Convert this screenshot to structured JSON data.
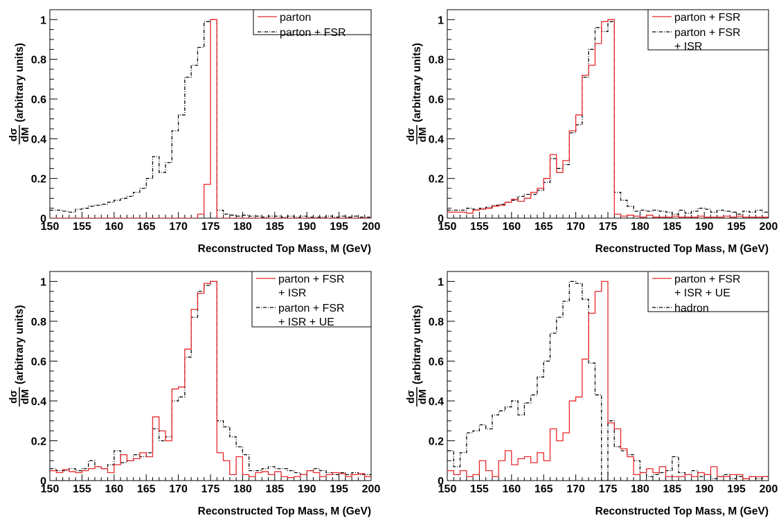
{
  "figure": {
    "x_axis_label": "Reconstructed Top Mass, M (GeV)",
    "y_axis_label": {
      "numerator": "dσ",
      "denominator": "dM",
      "units": "(arbitrary units)"
    }
  },
  "colors": {
    "red": "#e8262a",
    "black": "#000000"
  },
  "chart_data": [
    {
      "type": "line",
      "title": "",
      "xlabel": "Reconstructed Top Mass, M (GeV)",
      "ylabel": "dσ/dM (arbitrary units)",
      "xlim": [
        150,
        200
      ],
      "ylim": [
        0,
        1.05
      ],
      "x_ticks": [
        "150",
        "155",
        "160",
        "165",
        "170",
        "175",
        "180",
        "185",
        "190",
        "195",
        "200"
      ],
      "y_ticks": [
        "0",
        "0.2",
        "0.4",
        "0.6",
        "0.8",
        "1"
      ],
      "bin_edges_start": 150,
      "bin_width": 1,
      "legend_location": "top-right",
      "series": [
        {
          "name": "parton",
          "color": "red",
          "style": "solid",
          "values": [
            0,
            0,
            0,
            0,
            0,
            0,
            0,
            0,
            0,
            0,
            0,
            0,
            0,
            0,
            0,
            0,
            0,
            0,
            0,
            0,
            0,
            0,
            0,
            0.02,
            0.17,
            1.0,
            0,
            0,
            0,
            0,
            0,
            0,
            0,
            0,
            0,
            0,
            0,
            0,
            0,
            0,
            0,
            0,
            0,
            0,
            0,
            0,
            0,
            0,
            0,
            0
          ]
        },
        {
          "name": "parton + FSR",
          "color": "black",
          "style": "dashdot",
          "values": [
            0.04,
            0.04,
            0.035,
            0.03,
            0.045,
            0.05,
            0.06,
            0.065,
            0.07,
            0.08,
            0.09,
            0.1,
            0.11,
            0.13,
            0.15,
            0.2,
            0.31,
            0.23,
            0.28,
            0.44,
            0.52,
            0.71,
            0.77,
            0.86,
            0.99,
            1.0,
            0.04,
            0.02,
            0.015,
            0.01,
            0.015,
            0.01,
            0.01,
            0.005,
            0.01,
            0.01,
            0.005,
            0.01,
            0.005,
            0.01,
            0.005,
            0.005,
            0.005,
            0.01,
            0.005,
            0.01,
            0.005,
            0.01,
            0.005,
            0.005
          ]
        }
      ]
    },
    {
      "type": "line",
      "title": "",
      "xlabel": "Reconstructed Top Mass, M (GeV)",
      "ylabel": "dσ/dM (arbitrary units)",
      "xlim": [
        150,
        200
      ],
      "ylim": [
        0,
        1.05
      ],
      "x_ticks": [
        "150",
        "155",
        "160",
        "165",
        "170",
        "175",
        "180",
        "185",
        "190",
        "195",
        "200"
      ],
      "y_ticks": [
        "0",
        "0.2",
        "0.4",
        "0.6",
        "0.8",
        "1"
      ],
      "bin_edges_start": 150,
      "bin_width": 1,
      "legend_location": "top-right",
      "series": [
        {
          "name": "parton + FSR",
          "color": "red",
          "style": "solid",
          "values": [
            0.03,
            0.03,
            0.03,
            0.025,
            0.04,
            0.045,
            0.05,
            0.06,
            0.065,
            0.08,
            0.095,
            0.085,
            0.1,
            0.13,
            0.15,
            0.2,
            0.32,
            0.23,
            0.29,
            0.44,
            0.52,
            0.72,
            0.77,
            0.88,
            0.99,
            1.0,
            0.02,
            0.01,
            0.015,
            0.01,
            0.005,
            0.015,
            0.005,
            0.005,
            0.005,
            0.01,
            0.005,
            0.005,
            0.005,
            0.01,
            0.005,
            0.005,
            0.005,
            0.01,
            0.005,
            0.01,
            0.005,
            0.005,
            0.005,
            0.005
          ]
        },
        {
          "name": "parton + FSR + ISR",
          "legend_lines": [
            "parton + FSR",
            "+ ISR"
          ],
          "color": "black",
          "style": "dashdot",
          "values": [
            0.04,
            0.04,
            0.04,
            0.05,
            0.045,
            0.05,
            0.055,
            0.065,
            0.07,
            0.08,
            0.09,
            0.11,
            0.12,
            0.12,
            0.14,
            0.18,
            0.3,
            0.25,
            0.27,
            0.43,
            0.47,
            0.71,
            0.85,
            0.96,
            0.94,
            0.99,
            0.13,
            0.09,
            0.06,
            0.035,
            0.04,
            0.035,
            0.04,
            0.035,
            0.03,
            0.02,
            0.04,
            0.025,
            0.035,
            0.05,
            0.045,
            0.03,
            0.04,
            0.035,
            0.03,
            0.02,
            0.035,
            0.03,
            0.04,
            0.03
          ]
        }
      ]
    },
    {
      "type": "line",
      "title": "",
      "xlabel": "Reconstructed Top Mass, M (GeV)",
      "ylabel": "dσ/dM (arbitrary units)",
      "xlim": [
        150,
        200
      ],
      "ylim": [
        0,
        1.05
      ],
      "x_ticks": [
        "150",
        "155",
        "160",
        "165",
        "170",
        "175",
        "180",
        "185",
        "190",
        "195",
        "200"
      ],
      "y_ticks": [
        "0",
        "0.2",
        "0.4",
        "0.6",
        "0.8",
        "1"
      ],
      "bin_edges_start": 150,
      "bin_width": 1,
      "legend_location": "top-right",
      "series": [
        {
          "name": "parton + FSR + ISR",
          "legend_lines": [
            "parton + FSR",
            "+ ISR"
          ],
          "color": "red",
          "style": "solid",
          "values": [
            0.05,
            0.04,
            0.055,
            0.045,
            0.04,
            0.05,
            0.06,
            0.07,
            0.06,
            0.04,
            0.08,
            0.13,
            0.1,
            0.11,
            0.14,
            0.12,
            0.32,
            0.25,
            0.2,
            0.46,
            0.47,
            0.66,
            0.86,
            0.94,
            0.99,
            1.0,
            0.14,
            0.1,
            0.03,
            0.12,
            0.03,
            0.02,
            0.04,
            0.045,
            0.03,
            0.045,
            0.02,
            0.015,
            0.02,
            0.03,
            0.05,
            0.04,
            0.02,
            0.03,
            0.04,
            0.035,
            0.02,
            0.03,
            0.035,
            0.02
          ]
        },
        {
          "name": "parton + FSR + ISR + UE",
          "legend_lines": [
            "parton + FSR",
            "+ ISR + UE"
          ],
          "color": "black",
          "style": "dashdot",
          "values": [
            0.06,
            0.05,
            0.05,
            0.06,
            0.05,
            0.06,
            0.1,
            0.07,
            0.06,
            0.08,
            0.15,
            0.09,
            0.1,
            0.13,
            0.12,
            0.14,
            0.26,
            0.2,
            0.22,
            0.4,
            0.42,
            0.62,
            0.82,
            0.95,
            0.98,
            1.0,
            0.3,
            0.27,
            0.22,
            0.17,
            0.13,
            0.05,
            0.05,
            0.06,
            0.07,
            0.06,
            0.06,
            0.05,
            0.04,
            0.03,
            0.05,
            0.06,
            0.05,
            0.04,
            0.03,
            0.04,
            0.03,
            0.04,
            0.03,
            0.03
          ]
        }
      ]
    },
    {
      "type": "line",
      "title": "",
      "xlabel": "Reconstructed Top Mass, M (GeV)",
      "ylabel": "dσ/dM (arbitrary units)",
      "xlim": [
        150,
        200
      ],
      "ylim": [
        0,
        1.05
      ],
      "x_ticks": [
        "150",
        "155",
        "160",
        "165",
        "170",
        "175",
        "180",
        "185",
        "190",
        "195",
        "200"
      ],
      "y_ticks": [
        "0",
        "0.2",
        "0.4",
        "0.6",
        "0.8",
        "1"
      ],
      "bin_edges_start": 150,
      "bin_width": 1,
      "legend_location": "top-right",
      "series": [
        {
          "name": "parton + FSR + ISR + UE",
          "legend_lines": [
            "parton + FSR",
            "+ ISR + UE"
          ],
          "color": "red",
          "style": "solid",
          "values": [
            0.05,
            0.03,
            0.05,
            0.02,
            0.03,
            0.1,
            0.05,
            0.02,
            0.1,
            0.15,
            0.08,
            0.11,
            0.12,
            0.09,
            0.14,
            0.1,
            0.26,
            0.2,
            0.24,
            0.4,
            0.42,
            0.61,
            0.84,
            0.95,
            1.0,
            0.29,
            0.26,
            0.16,
            0.12,
            0.03,
            0.04,
            0.06,
            0.04,
            0.07,
            0.02,
            0.02,
            0.02,
            0.03,
            0.02,
            0.04,
            0.03,
            0.07,
            0.02,
            0.02,
            0.03,
            0.03,
            0.01,
            0.02,
            0.02,
            0.02
          ]
        },
        {
          "name": "hadron",
          "color": "black",
          "style": "dashdot",
          "values": [
            0.15,
            0.07,
            0.14,
            0.24,
            0.25,
            0.28,
            0.26,
            0.33,
            0.35,
            0.37,
            0.4,
            0.33,
            0.39,
            0.43,
            0.52,
            0.6,
            0.74,
            0.82,
            0.9,
            1.0,
            0.99,
            0.91,
            0.59,
            0.43,
            0.0,
            0.3,
            0.17,
            0.15,
            0.13,
            0.1,
            0.04,
            0.02,
            0.03,
            0.04,
            0.05,
            0.12,
            0.04,
            0.03,
            0.05,
            0.02,
            0.03,
            0.01,
            0.02,
            0.03,
            0.01,
            0.02,
            0.01,
            0.02,
            0.01,
            0.02
          ]
        }
      ]
    }
  ]
}
